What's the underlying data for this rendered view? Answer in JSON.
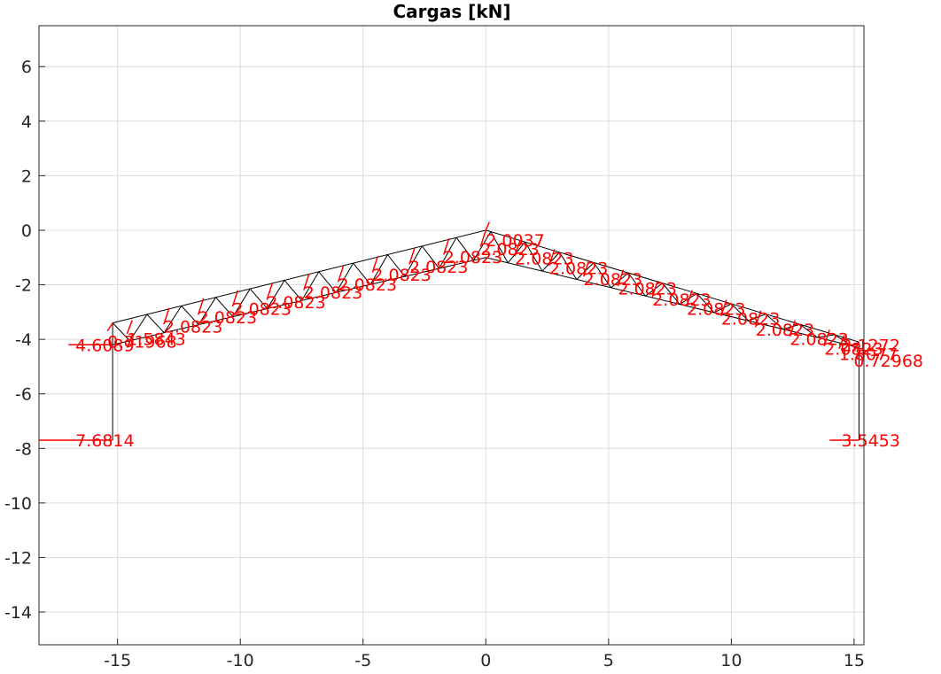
{
  "chart_data": {
    "type": "diagram",
    "title": "Cargas [kN]",
    "xlim": [
      -18.2,
      15.4
    ],
    "ylim": [
      -15.2,
      7.5
    ],
    "x_ticks": [
      -15,
      -10,
      -5,
      0,
      5,
      10,
      15
    ],
    "y_ticks": [
      6,
      4,
      2,
      0,
      -2,
      -4,
      -6,
      -8,
      -10,
      -12,
      -14
    ],
    "grid": true,
    "structure": {
      "left_column": {
        "x": -15.2,
        "y_bottom": -7.7,
        "y_top": -4.2
      },
      "right_column": {
        "x": 15.2,
        "y_bottom": -7.7,
        "y_top": -4.2
      },
      "truss_top_chord": [
        [
          -15.2,
          -3.4
        ],
        [
          0,
          0
        ],
        [
          15.2,
          -4.1
        ]
      ],
      "truss_bottom_chord": [
        [
          -15.2,
          -4.2
        ],
        [
          0,
          -1.0
        ],
        [
          15.2,
          -4.3
        ]
      ]
    },
    "loads": [
      {
        "label": "7.6814",
        "x": -15.2,
        "y": -7.7,
        "dir": "h",
        "len": 3.0
      },
      {
        "label": "4.6089",
        "x": -15.2,
        "y": -4.2,
        "dir": "h",
        "len": 1.8
      },
      {
        "label": "3.5453",
        "x": 15.2,
        "y": -7.7,
        "dir": "h",
        "len": 1.2
      },
      {
        "label": "2.1272",
        "x": 15.2,
        "y": -4.2,
        "dir": "h",
        "len": 0.8
      },
      {
        "label": "0.71968",
        "x": -15.2,
        "y": -3.4,
        "dir": "d",
        "len": 0.3
      },
      {
        "label": "1.5843",
        "x": -14.4,
        "y": -3.3,
        "dir": "d",
        "len": 0.5
      },
      {
        "label": "2.0823",
        "x": -12.9,
        "y": -2.85,
        "dir": "d",
        "len": 0.6
      },
      {
        "label": "2.0823",
        "x": -11.5,
        "y": -2.5,
        "dir": "d",
        "len": 0.6
      },
      {
        "label": "2.0823",
        "x": -10.1,
        "y": -2.2,
        "dir": "d",
        "len": 0.6
      },
      {
        "label": "2.0823",
        "x": -8.7,
        "y": -1.95,
        "dir": "d",
        "len": 0.6
      },
      {
        "label": "2.0823",
        "x": -7.2,
        "y": -1.6,
        "dir": "d",
        "len": 0.6
      },
      {
        "label": "2.0823",
        "x": -5.8,
        "y": -1.3,
        "dir": "d",
        "len": 0.6
      },
      {
        "label": "2.0823",
        "x": -4.4,
        "y": -0.95,
        "dir": "d",
        "len": 0.6
      },
      {
        "label": "2.0823",
        "x": -2.9,
        "y": -0.65,
        "dir": "d",
        "len": 0.6
      },
      {
        "label": "2.0823",
        "x": -1.5,
        "y": -0.3,
        "dir": "d",
        "len": 0.6
      },
      {
        "label": "2.0823",
        "x": 0.0,
        "y": 0.0,
        "dir": "d",
        "len": 0.6
      },
      {
        "label": "2.0037",
        "x": 0.0,
        "y": 0.0,
        "dir": "u",
        "len": 0.3
      },
      {
        "label": "2.0823",
        "x": 1.4,
        "y": -0.35,
        "dir": "d",
        "len": 0.6
      },
      {
        "label": "2.0823",
        "x": 2.8,
        "y": -0.7,
        "dir": "d",
        "len": 0.6
      },
      {
        "label": "2.0823",
        "x": 4.2,
        "y": -1.1,
        "dir": "d",
        "len": 0.6
      },
      {
        "label": "2.0823",
        "x": 5.6,
        "y": -1.45,
        "dir": "d",
        "len": 0.6
      },
      {
        "label": "2.0823",
        "x": 7.0,
        "y": -1.85,
        "dir": "d",
        "len": 0.6
      },
      {
        "label": "2.0823",
        "x": 8.4,
        "y": -2.2,
        "dir": "d",
        "len": 0.6
      },
      {
        "label": "2.0823",
        "x": 9.8,
        "y": -2.55,
        "dir": "d",
        "len": 0.6
      },
      {
        "label": "2.0823",
        "x": 11.2,
        "y": -2.95,
        "dir": "d",
        "len": 0.6
      },
      {
        "label": "2.0823",
        "x": 12.6,
        "y": -3.3,
        "dir": "d",
        "len": 0.6
      },
      {
        "label": "2.0823",
        "x": 14.0,
        "y": -3.65,
        "dir": "d",
        "len": 0.6
      },
      {
        "label": "1.8077",
        "x": 14.6,
        "y": -3.85,
        "dir": "d",
        "len": 0.5
      },
      {
        "label": "0.72968",
        "x": 15.2,
        "y": -4.1,
        "dir": "d",
        "len": 0.3
      }
    ]
  }
}
